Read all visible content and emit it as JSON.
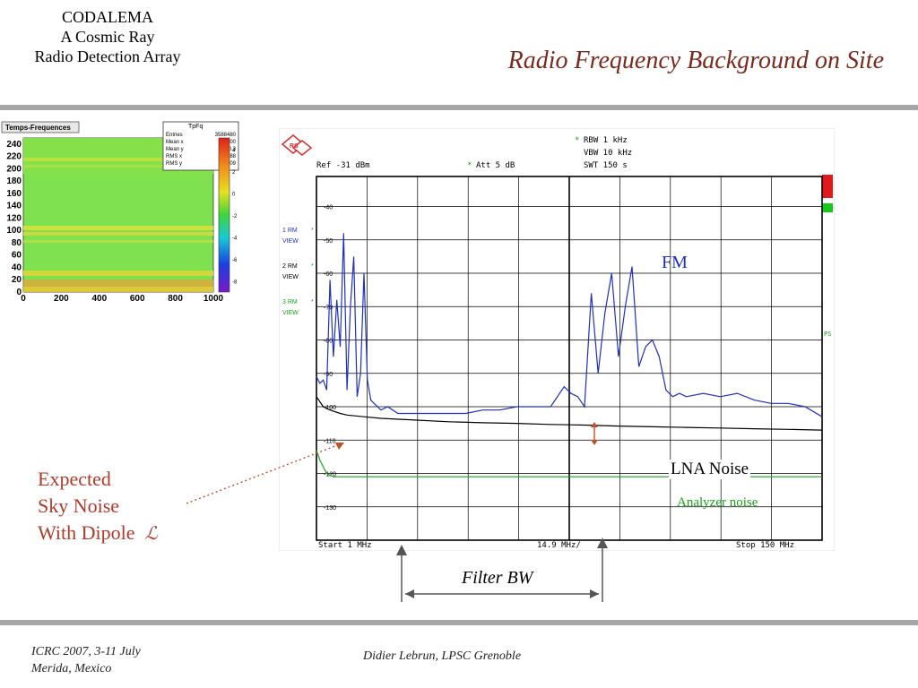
{
  "header": {
    "project_line1": "CODALEMA",
    "project_line2": "A Cosmic Ray",
    "project_line3": "Radio Detection Array",
    "title": "Radio Frequency Background on Site"
  },
  "footer": {
    "conference_line1": "ICRC 2007, 3-11 July",
    "conference_line2": "Merida, Mexico",
    "author": "Didier Lebrun, LPSC Grenoble"
  },
  "annotations": {
    "expected_line1": "Expected",
    "expected_line2": "Sky Noise",
    "expected_line3": "With Dipole",
    "dipole_symbol": "ℒ",
    "fm": "FM",
    "lna_noise": "LNA Noise",
    "analyzer_noise": "Analyzer noise",
    "filter_bw": "Filter BW"
  },
  "spectrogram": {
    "title": "Temps-Frequences",
    "stats_title": "TpFq",
    "stats": [
      {
        "label": "Entries",
        "value": "3588480"
      },
      {
        "label": "Mean x",
        "value": "500"
      },
      {
        "label": "Mean y",
        "value": "140.3"
      },
      {
        "label": "RMS x",
        "value": "288"
      },
      {
        "label": "RMS y",
        "value": "69.09"
      }
    ],
    "y_ticks": [
      "240",
      "220",
      "200",
      "180",
      "160",
      "140",
      "120",
      "100",
      "80",
      "60",
      "40",
      "20",
      "0"
    ],
    "x_ticks": [
      "0",
      "200",
      "400",
      "600",
      "800",
      "1000"
    ],
    "colorbar_ticks": [
      "4",
      "2",
      "0",
      "-2",
      "-4",
      "-6",
      "-8"
    ]
  },
  "analyzer": {
    "logo": "RS",
    "rbw": "RBW 1 kHz",
    "vbw": "VBW 10 kHz",
    "swt": "SWT 150 s",
    "ref": "Ref -31 dBm",
    "att": "Att 5 dB",
    "traces": [
      {
        "id": "1 RM",
        "mode": "VIEW",
        "color": "#1f2fc0"
      },
      {
        "id": "2 RM",
        "mode": "VIEW",
        "color": "#000000"
      },
      {
        "id": "3 RM",
        "mode": "VIEW",
        "color": "#18a318"
      }
    ],
    "start": "Start 1 MHz",
    "center": "14.9 MHz/",
    "stop": "Stop 150 MHz",
    "right_marker": "PS"
  },
  "chart_data": {
    "type": "line",
    "title": "",
    "xlabel": "",
    "ylabel": "",
    "xlim": [
      1,
      150
    ],
    "ylim": [
      -140,
      -31
    ],
    "y_ticks": [
      -40,
      -50,
      -60,
      -70,
      -80,
      -90,
      -100,
      -110,
      -120,
      -130
    ],
    "series": [
      {
        "name": "1 RM",
        "color": "#1f2fc0",
        "x": [
          1,
          2,
          3,
          4,
          5,
          6,
          7,
          8,
          9,
          10,
          11,
          12,
          13,
          14,
          15,
          16,
          17,
          18,
          20,
          22,
          25,
          30,
          35,
          40,
          45,
          50,
          55,
          60,
          65,
          70,
          74,
          76,
          78,
          80,
          82,
          84,
          86,
          88,
          90,
          92,
          94,
          96,
          98,
          100,
          102,
          104,
          106,
          108,
          110,
          115,
          120,
          125,
          130,
          135,
          140,
          145,
          150
        ],
        "y": [
          -91,
          -93,
          -92,
          -95,
          -62,
          -85,
          -68,
          -82,
          -48,
          -95,
          -70,
          -55,
          -97,
          -90,
          -60,
          -92,
          -98,
          -99,
          -101,
          -100,
          -102,
          -102,
          -102,
          -102,
          -102,
          -101,
          -101,
          -100,
          -100,
          -100,
          -94,
          -96,
          -97,
          -100,
          -66,
          -90,
          -72,
          -60,
          -85,
          -70,
          -58,
          -88,
          -82,
          -80,
          -85,
          -95,
          -97,
          -96,
          -97,
          -96,
          -97,
          -96,
          -98,
          -99,
          -99,
          -100,
          -103
        ]
      },
      {
        "name": "2 RM",
        "color": "#000000",
        "x": [
          1,
          3,
          5,
          8,
          10,
          15,
          20,
          30,
          40,
          50,
          60,
          70,
          80,
          90,
          100,
          110,
          120,
          130,
          140,
          150
        ],
        "y": [
          -97,
          -100,
          -101,
          -102,
          -102.5,
          -103,
          -103.5,
          -104,
          -104.5,
          -104.8,
          -105,
          -105.3,
          -105.5,
          -105.8,
          -106,
          -106.2,
          -106.4,
          -106.6,
          -106.8,
          -107
        ]
      },
      {
        "name": "3 RM",
        "color": "#18a318",
        "x": [
          1,
          2,
          3,
          4,
          5,
          6,
          8,
          10,
          20,
          40,
          60,
          80,
          100,
          120,
          140,
          150
        ],
        "y": [
          -113,
          -116,
          -118,
          -120,
          -120.5,
          -121,
          -121,
          -121,
          -121,
          -121,
          -121,
          -121,
          -121,
          -121,
          -121,
          -121
        ]
      }
    ]
  }
}
